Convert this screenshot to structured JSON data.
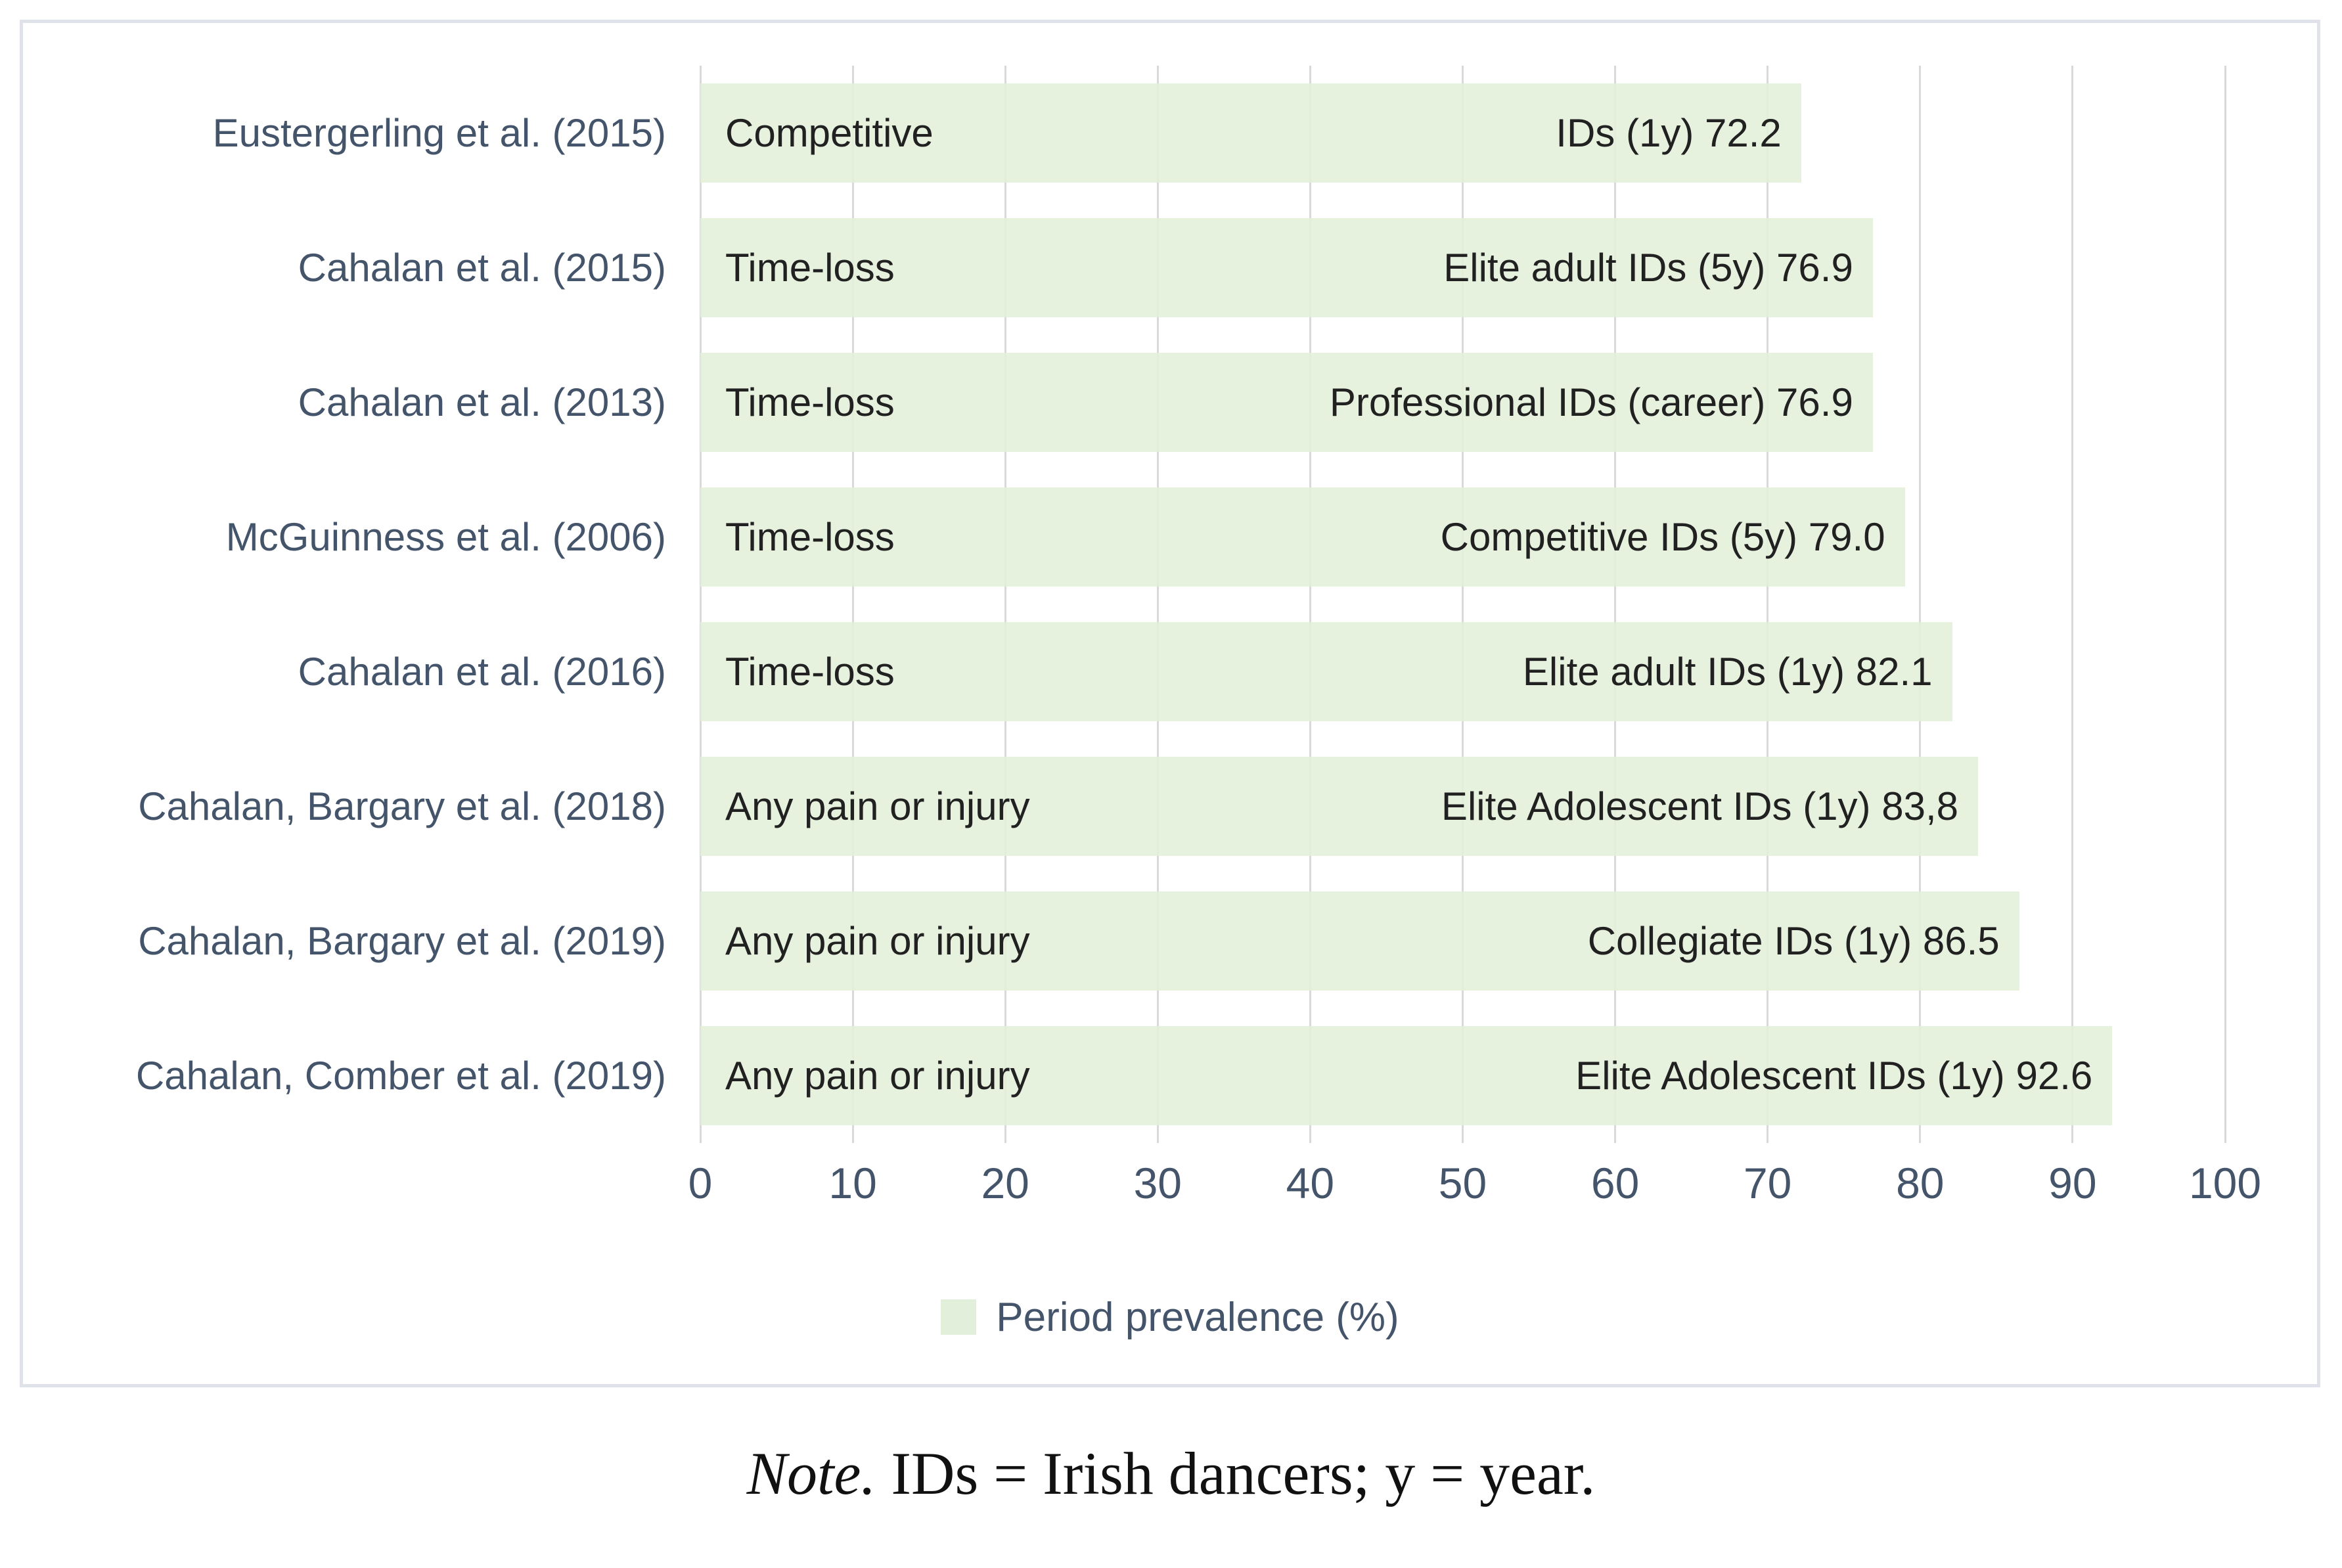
{
  "chart_data": {
    "type": "bar",
    "orientation": "horizontal",
    "title": "",
    "xlabel": "",
    "ylabel": "",
    "xlim": [
      0,
      100
    ],
    "x_ticks": [
      0,
      10,
      20,
      30,
      40,
      50,
      60,
      70,
      80,
      90,
      100
    ],
    "grid": "vertical, light gray",
    "legend_position": "bottom center",
    "legend_label": "Period prevalence (%)",
    "categories": [
      "Eustergerling et al. (2015)",
      "Cahalan et al. (2015)",
      "Cahalan et al. (2013)",
      "McGuinness et al. (2006)",
      "Cahalan et al. (2016)",
      "Cahalan, Bargary et al. (2018)",
      "Cahalan, Bargary et al. (2019)",
      "Cahalan, Comber et al. (2019)"
    ],
    "injury_definitions": [
      "Competitive",
      "Time-loss",
      "Time-loss",
      "Time-loss",
      "Time-loss",
      "Any pain or injury",
      "Any pain or injury",
      "Any pain or injury"
    ],
    "bar_value_labels": [
      "IDs  (1y) 72.2",
      "Elite adult IDs  (5y) 76.9",
      "Professional IDs  (career) 76.9",
      "Competitive IDs  (5y) 79.0",
      "Elite adult IDs  (1y) 82.1",
      "Elite Adolescent IDs  (1y) 83,8",
      "Collegiate  IDs (1y) 86.5",
      "Elite Adolescent IDs (1y) 92.6"
    ],
    "values": [
      72.2,
      76.9,
      76.9,
      79.0,
      82.1,
      83.8,
      86.5,
      92.6
    ],
    "bar_color": "#e2efda",
    "category_label_color": "#44546a",
    "axis_label_color": "#44546a",
    "bar_text_color": "#212121",
    "gridline_color": "#d9d9d9",
    "frame_border_color": "#dfe2e9"
  },
  "note": {
    "prefix": "Note.",
    "text": " IDs = Irish dancers; y = year."
  }
}
